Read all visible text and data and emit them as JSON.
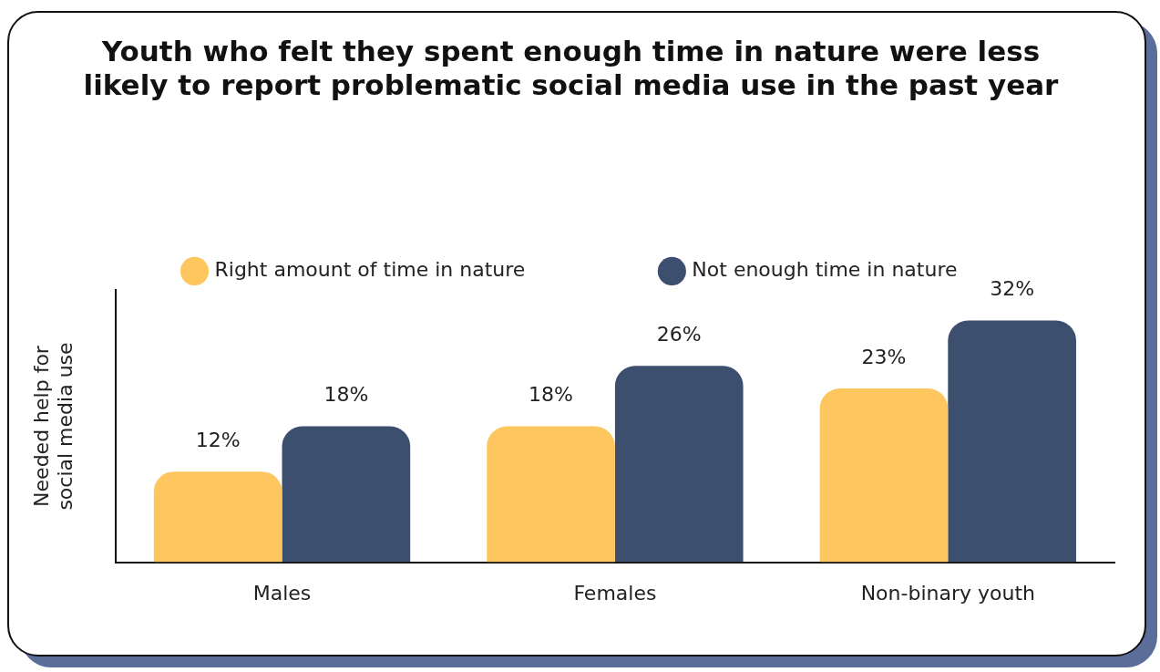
{
  "chart_data": {
    "type": "bar",
    "title": "Youth who felt they spent enough time in nature were less likely to report problematic social media use in the past year",
    "ylabel": "Needed help for social media use",
    "categories": [
      "Males",
      "Females",
      "Non-binary youth"
    ],
    "series": [
      {
        "name": "Right amount of time in nature",
        "color": "#fdc65e",
        "values": [
          12,
          18,
          23
        ],
        "value_labels": [
          "12%",
          "18%",
          "23%"
        ]
      },
      {
        "name": "Not enough time in nature",
        "color": "#3d4f6e",
        "values": [
          18,
          26,
          32
        ],
        "value_labels": [
          "18%",
          "26%",
          "32%"
        ]
      }
    ],
    "ylim": [
      0,
      36
    ],
    "tick_labels": "x",
    "grid": false,
    "legend": "top"
  }
}
